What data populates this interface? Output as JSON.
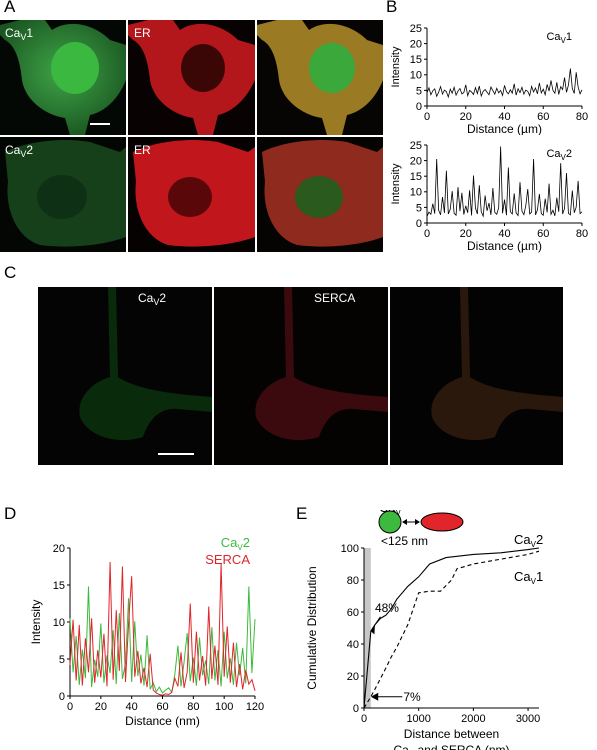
{
  "panels": {
    "A": "A",
    "B": "B",
    "C": "C",
    "D": "D",
    "E": "E"
  },
  "panel_a": {
    "row1": {
      "cav_main": "Ca",
      "cav_sub": "V",
      "cav_num": "1",
      "er": "ER"
    },
    "row2": {
      "cav_main": "Ca",
      "cav_sub": "V",
      "cav_num": "2",
      "er": "ER"
    }
  },
  "panel_c": {
    "cav_main": "Ca",
    "cav_sub": "V",
    "cav_num": "2",
    "serca": "SERCA"
  },
  "inset": {
    "cav_main": "Ca",
    "cav_sub": "V",
    "serca": "SERCA",
    "distance": "<125 nm"
  },
  "colors": {
    "green": "#3dba3d",
    "red": "#e0252b",
    "black": "#000000"
  },
  "chart_data": [
    {
      "id": "B1",
      "type": "line",
      "title": "",
      "label_main": "Ca",
      "label_sub": "V",
      "label_num": "1",
      "xlabel": "Distance (µm)",
      "xlabel_pre": "Distance (",
      "xlabel_mu": "µ",
      "xlabel_post": "m)",
      "ylabel": "Intensity",
      "xlim": [
        0,
        80
      ],
      "ylim": [
        0,
        25
      ],
      "xticks": [
        "0",
        "20",
        "40",
        "60",
        "80"
      ],
      "yticks": [
        "0",
        "5",
        "10",
        "15",
        "20",
        "25"
      ],
      "series": [
        {
          "values": [
            4.2,
            5.8,
            3.6,
            4.9,
            5.5,
            3.1,
            4.4,
            6.2,
            3.8,
            5.1,
            4.6,
            2.9,
            5.4,
            4.1,
            6.0,
            3.5,
            4.8,
            5.6,
            3.9,
            4.3,
            6.8,
            3.3,
            5.0,
            4.5,
            3.7,
            5.9,
            4.0,
            6.4,
            3.2,
            4.7,
            5.3,
            4.4,
            3.6,
            6.1,
            4.9,
            3.8,
            5.7,
            4.2,
            5.0,
            3.4,
            6.6,
            4.6,
            3.9,
            5.2,
            4.1,
            7.1,
            3.5,
            5.5,
            4.3,
            6.0,
            3.8,
            5.1,
            4.7,
            3.3,
            6.3,
            4.5,
            5.8,
            3.9,
            7.4,
            4.2,
            5.4,
            3.6,
            6.9,
            4.8,
            8.2,
            5.0,
            4.1,
            7.6,
            3.7,
            6.2,
            5.3,
            9.1,
            4.4,
            6.7,
            12.0,
            5.6,
            4.0,
            10.8,
            6.1,
            3.9,
            5.2
          ]
        }
      ]
    },
    {
      "id": "B2",
      "type": "line",
      "title": "",
      "label_main": "Ca",
      "label_sub": "V",
      "label_num": "2",
      "xlabel": "Distance (µm)",
      "xlabel_pre": "Distance (",
      "xlabel_mu": "µ",
      "xlabel_post": "m)",
      "ylabel": "Intensity",
      "xlim": [
        0,
        80
      ],
      "ylim": [
        0,
        25
      ],
      "xticks": [
        "0",
        "20",
        "40",
        "60",
        "80"
      ],
      "yticks": [
        "0",
        "5",
        "10",
        "15",
        "20",
        "25"
      ],
      "series": [
        {
          "values": [
            2.1,
            3.5,
            2.8,
            6.2,
            3.0,
            20.5,
            4.1,
            2.6,
            8.3,
            3.2,
            16.8,
            2.9,
            4.4,
            10.2,
            3.1,
            2.5,
            11.5,
            3.8,
            9.7,
            2.7,
            5.5,
            3.3,
            10.5,
            2.4,
            15.2,
            4.8,
            2.9,
            12.1,
            3.6,
            2.2,
            8.8,
            3.9,
            6.4,
            2.6,
            11.2,
            3.4,
            2.8,
            4.9,
            24.5,
            3.1,
            7.5,
            2.5,
            17.8,
            3.7,
            2.9,
            9.5,
            3.2,
            2.4,
            13.1,
            3.8,
            2.7,
            5.6,
            10.9,
            2.9,
            3.5,
            20.5,
            2.6,
            4.2,
            9.3,
            3.0,
            2.5,
            7.8,
            3.4,
            12.6,
            2.8,
            4.1,
            2.3,
            8.1,
            3.6,
            19.2,
            2.9,
            4.7,
            16.0,
            3.1,
            2.6,
            10.4,
            3.3,
            5.1,
            13.5,
            3.0,
            3.6
          ]
        }
      ]
    },
    {
      "id": "D",
      "type": "line",
      "title": "",
      "xlabel": "Distance (nm)",
      "ylabel": "Intensity",
      "xlim": [
        0,
        120
      ],
      "ylim": [
        0,
        20
      ],
      "xticks": [
        "0",
        "20",
        "40",
        "60",
        "80",
        "100",
        "120"
      ],
      "yticks": [
        "0",
        "5",
        "10",
        "15",
        "20"
      ],
      "series": [
        {
          "name": "CaV2",
          "name_main": "Ca",
          "name_sub": "V",
          "name_num": "2",
          "color": "#3dba3d",
          "x": [
            0,
            2,
            4,
            6,
            8,
            10,
            12,
            14,
            16,
            18,
            20,
            22,
            24,
            26,
            28,
            30,
            32,
            34,
            36,
            38,
            40,
            42,
            44,
            46,
            48,
            50,
            52,
            54,
            56,
            58,
            60,
            62,
            64,
            66,
            68,
            70,
            72,
            74,
            76,
            78,
            80,
            82,
            84,
            86,
            88,
            90,
            92,
            94,
            96,
            98,
            100,
            102,
            104,
            106,
            108,
            110,
            112,
            114,
            116,
            118,
            120
          ],
          "values": [
            10.5,
            3.2,
            8.1,
            1.5,
            6.3,
            2.4,
            14.8,
            1.2,
            4.9,
            2.6,
            9.8,
            1.8,
            5.5,
            3.1,
            8.9,
            1.6,
            11.2,
            2.3,
            4.4,
            13.2,
            1.9,
            10.1,
            2.7,
            5.6,
            1.4,
            8.2,
            0.9,
            1.8,
            0.6,
            1.2,
            0.4,
            0.8,
            1.1,
            0.5,
            2.9,
            6.8,
            1.3,
            4.6,
            8.5,
            2.0,
            5.2,
            1.4,
            7.9,
            2.8,
            4.8,
            1.6,
            9.3,
            2.1,
            6.2,
            1.3,
            8.7,
            2.4,
            5.1,
            1.5,
            7.2,
            2.8,
            6.5,
            1.7,
            14.8,
            3.1,
            10.4
          ]
        },
        {
          "name": "SERCA",
          "color": "#e0252b",
          "x": [
            0,
            2,
            4,
            6,
            8,
            10,
            12,
            14,
            16,
            18,
            20,
            22,
            24,
            26,
            28,
            30,
            32,
            34,
            36,
            38,
            40,
            42,
            44,
            46,
            48,
            50,
            52,
            54,
            56,
            58,
            60,
            62,
            64,
            66,
            68,
            70,
            72,
            74,
            76,
            78,
            80,
            82,
            84,
            86,
            88,
            90,
            92,
            94,
            96,
            98,
            100,
            102,
            104,
            106,
            108,
            110,
            112,
            114,
            116,
            118,
            120
          ],
          "values": [
            4.2,
            10.3,
            2.1,
            9.6,
            1.4,
            7.8,
            3.2,
            10.5,
            1.8,
            6.2,
            2.5,
            8.4,
            1.3,
            18.1,
            2.2,
            11.6,
            3.4,
            17.5,
            1.9,
            9.8,
            16.2,
            2.6,
            6.1,
            1.7,
            3.8,
            1.2,
            5.7,
            0.8,
            0.4,
            0.2,
            0.1,
            0.3,
            0.2,
            0.5,
            2.4,
            1.3,
            5.9,
            1.1,
            3.2,
            12.5,
            1.8,
            8.7,
            2.1,
            5.4,
            1.4,
            12.1,
            2.3,
            6.8,
            1.5,
            17.9,
            2.6,
            9.4,
            1.8,
            7.2,
            1.2,
            4.3,
            0.9,
            3.5,
            1.6,
            2.2,
            0.7
          ]
        }
      ]
    },
    {
      "id": "E",
      "type": "line",
      "title": "",
      "xlabel": "Distance between",
      "xlabel2_main": "Ca",
      "xlabel2_sub": "V",
      "xlabel2_post": " and SERCA (nm)",
      "ylabel": "Cumulative Distribution",
      "xlim": [
        0,
        3200
      ],
      "ylim": [
        0,
        100
      ],
      "xticks": [
        "0",
        "1000",
        "2000",
        "3000"
      ],
      "yticks": [
        "0",
        "20",
        "40",
        "60",
        "80",
        "100"
      ],
      "annotations": {
        "top": "48%",
        "bottom": "7%"
      },
      "series": [
        {
          "name": "CaV2",
          "name_main": "Ca",
          "name_sub": "V",
          "name_num": "2",
          "style": "solid",
          "x": [
            0,
            125,
            200,
            300,
            400,
            500,
            600,
            800,
            1000,
            1200,
            1500,
            2000,
            2500,
            3000,
            3200
          ],
          "values": [
            0,
            48,
            52,
            56,
            58,
            62,
            68,
            76,
            82,
            90,
            94,
            96,
            97,
            99,
            100
          ]
        },
        {
          "name": "CaV1",
          "name_main": "Ca",
          "name_sub": "V",
          "name_num": "1",
          "style": "dashed",
          "x": [
            0,
            125,
            250,
            400,
            500,
            600,
            700,
            800,
            900,
            1000,
            1200,
            1400,
            1600,
            1700,
            2000,
            2500,
            3000,
            3200
          ],
          "values": [
            0,
            7,
            15,
            25,
            32,
            38,
            45,
            52,
            62,
            72,
            73,
            73,
            80,
            87,
            90,
            93,
            96,
            98
          ]
        }
      ]
    }
  ]
}
